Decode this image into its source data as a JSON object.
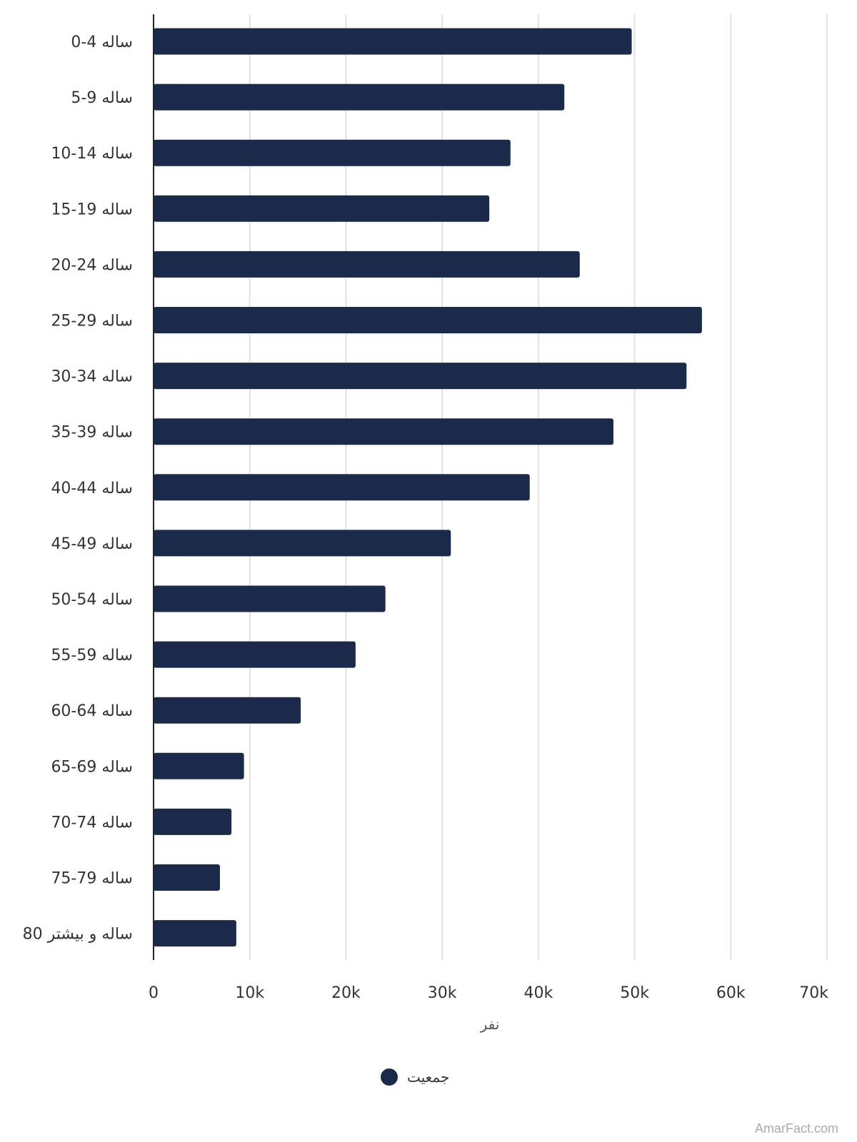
{
  "chart_data": {
    "type": "bar",
    "orientation": "horizontal",
    "categories": [
      "0-4 ساله",
      "5-9 ساله",
      "10-14 ساله",
      "15-19 ساله",
      "20-24 ساله",
      "25-29 ساله",
      "30-34 ساله",
      "35-39 ساله",
      "40-44 ساله",
      "45-49 ساله",
      "50-54 ساله",
      "55-59 ساله",
      "60-64 ساله",
      "65-69 ساله",
      "70-74 ساله",
      "75-79 ساله",
      "80 ساله و بیشتر"
    ],
    "series": [
      {
        "name": "جمعیت",
        "color": "#1b2a4a",
        "values": [
          49700,
          42700,
          37100,
          34900,
          44300,
          57000,
          55400,
          47800,
          39100,
          30900,
          24100,
          21000,
          15300,
          9400,
          8100,
          6900,
          8600
        ]
      }
    ],
    "xlabel": "نفر",
    "xlim": [
      0,
      70000
    ],
    "xticks": [
      {
        "value": 0,
        "label": "0"
      },
      {
        "value": 10000,
        "label": "10k"
      },
      {
        "value": 20000,
        "label": "20k"
      },
      {
        "value": 30000,
        "label": "30k"
      },
      {
        "value": 40000,
        "label": "40k"
      },
      {
        "value": 50000,
        "label": "50k"
      },
      {
        "value": 60000,
        "label": "60k"
      },
      {
        "value": 70000,
        "label": "70k"
      }
    ],
    "grid": true,
    "legend_position": "bottom-center"
  },
  "watermark": "AmarFact.com"
}
